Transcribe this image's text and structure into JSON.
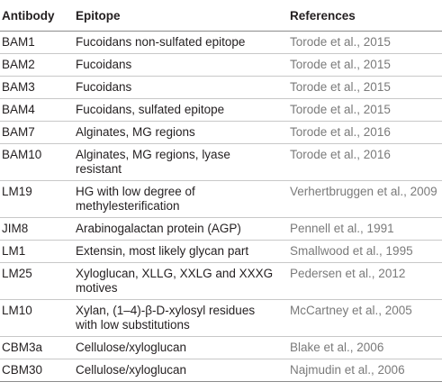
{
  "headers": {
    "antibody": "Antibody",
    "epitope": "Epitope",
    "references": "References"
  },
  "rows": [
    {
      "antibody": "BAM1",
      "epitope": [
        "Fucoidans non-sulfated epitope"
      ],
      "reference": "Torode et al., 2015"
    },
    {
      "antibody": "BAM2",
      "epitope": [
        "Fucoidans"
      ],
      "reference": "Torode et al., 2015"
    },
    {
      "antibody": "BAM3",
      "epitope": [
        "Fucoidans"
      ],
      "reference": "Torode et al., 2015"
    },
    {
      "antibody": "BAM4",
      "epitope": [
        "Fucoidans, sulfated epitope"
      ],
      "reference": "Torode et al., 2015"
    },
    {
      "antibody": "BAM7",
      "epitope": [
        "Alginates, MG regions"
      ],
      "reference": "Torode et al., 2016"
    },
    {
      "antibody": "BAM10",
      "epitope": [
        "Alginates, MG regions, lyase",
        "resistant"
      ],
      "reference": "Torode et al., 2016"
    },
    {
      "antibody": "LM19",
      "epitope": [
        "HG with low degree of",
        "methylesterification"
      ],
      "reference": "Verhertbruggen et al., 2009"
    },
    {
      "antibody": "JIM8",
      "epitope": [
        "Arabinogalactan protein (AGP)"
      ],
      "reference": "Pennell et al., 1991"
    },
    {
      "antibody": "LM1",
      "epitope": [
        "Extensin, most likely glycan part"
      ],
      "reference": "Smallwood et al., 1995"
    },
    {
      "antibody": "LM25",
      "epitope": [
        "Xyloglucan, XLLG, XXLG and XXXG",
        "motives"
      ],
      "reference": "Pedersen et al., 2012"
    },
    {
      "antibody": "LM10",
      "epitope": [
        "Xylan, (1–4)-β-D-xylosyl residues",
        "with low substitutions"
      ],
      "reference": "McCartney et al., 2005"
    },
    {
      "antibody": "CBM3a",
      "epitope": [
        "Cellulose/xyloglucan"
      ],
      "reference": "Blake et al., 2006"
    },
    {
      "antibody": "CBM30",
      "epitope": [
        "Cellulose/xyloglucan"
      ],
      "reference": "Najmudin et al., 2006"
    }
  ]
}
